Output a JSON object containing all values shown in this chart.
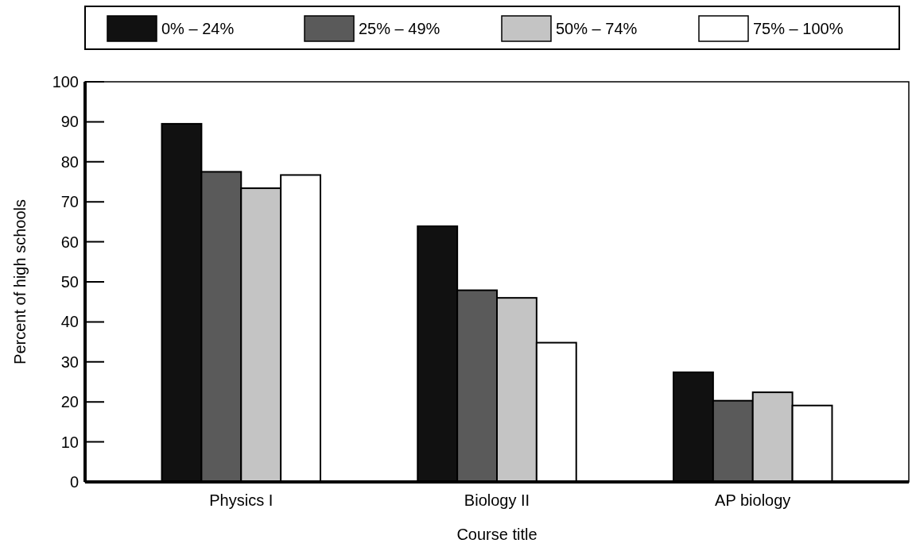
{
  "chart_data": {
    "type": "bar",
    "xlabel": "Course title",
    "ylabel": "Percent of high schools",
    "categories": [
      "Physics I",
      "Biology II",
      "AP biology"
    ],
    "series": [
      {
        "name": "0% – 24%",
        "color": "#111111",
        "values": [
          89.5,
          63.9,
          27.4
        ]
      },
      {
        "name": "25% – 49%",
        "color": "#5a5a5a",
        "values": [
          77.5,
          47.9,
          20.3
        ]
      },
      {
        "name": "50% – 74%",
        "color": "#c4c4c4",
        "values": [
          73.4,
          46,
          22.4
        ]
      },
      {
        "name": "75% – 100%",
        "color": "#ffffff",
        "values": [
          76.7,
          34.8,
          19.1
        ]
      }
    ],
    "ylim": [
      0,
      100
    ],
    "yticks": [
      0,
      10,
      20,
      30,
      40,
      50,
      60,
      70,
      80,
      90,
      100
    ],
    "legend": "top"
  }
}
